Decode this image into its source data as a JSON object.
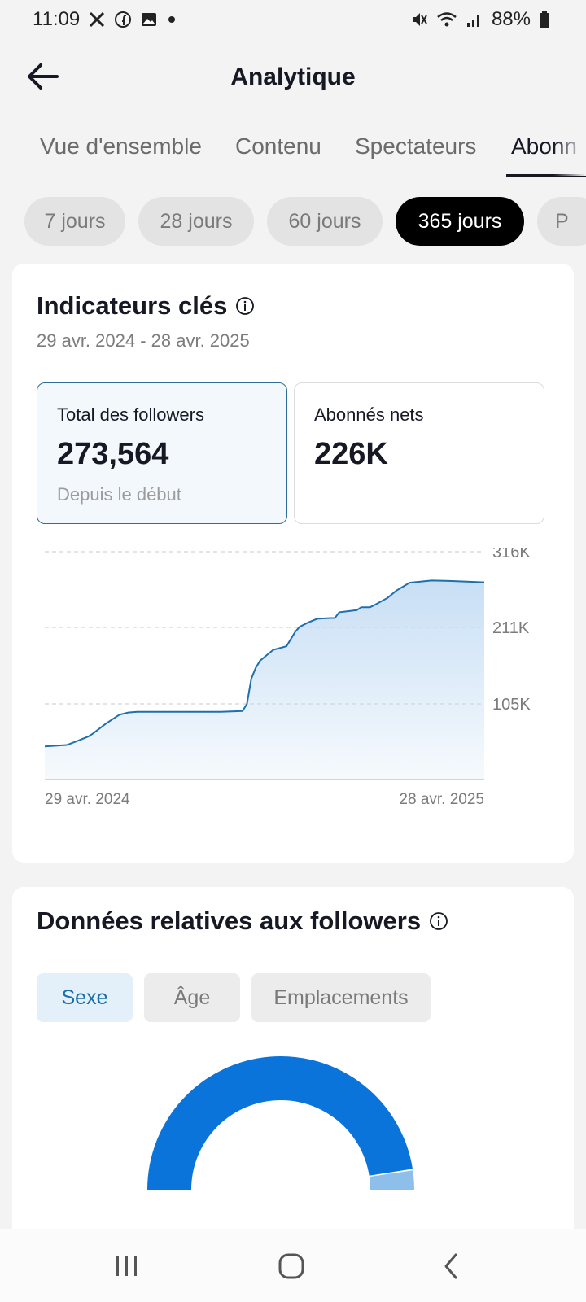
{
  "status_bar": {
    "time": "11:09",
    "battery": "88%",
    "icons": [
      "x-icon",
      "facebook-icon",
      "gallery-icon",
      "dot-icon",
      "mute-icon",
      "wifi-icon",
      "signal-icon",
      "battery-icon"
    ]
  },
  "header": {
    "title": "Analytique",
    "back_icon": "arrow-left-icon"
  },
  "tabs": [
    {
      "label": "Vue d'ensemble",
      "active": false
    },
    {
      "label": "Contenu",
      "active": false
    },
    {
      "label": "Spectateurs",
      "active": false
    },
    {
      "label": "Abonn",
      "active": true
    }
  ],
  "periods": [
    {
      "label": "7 jours",
      "active": false
    },
    {
      "label": "28 jours",
      "active": false
    },
    {
      "label": "60 jours",
      "active": false
    },
    {
      "label": "365 jours",
      "active": true
    },
    {
      "label": "P",
      "active": false
    }
  ],
  "key_metrics": {
    "title": "Indicateurs clés",
    "date_range": "29 avr. 2024 - 28 avr. 2025",
    "cards": [
      {
        "label": "Total des followers",
        "value": "273,564",
        "sub": "Depuis le début",
        "selected": true
      },
      {
        "label": "Abonnés nets",
        "value": "226K",
        "sub": "",
        "selected": false
      }
    ]
  },
  "chart_data": {
    "type": "area",
    "title": "",
    "xlabel": "",
    "ylabel": "",
    "x_tick_labels": [
      "29 avr. 2024",
      "28 avr. 2025"
    ],
    "y_tick_labels": [
      "316K",
      "211K",
      "105K"
    ],
    "y_ticks": [
      316000,
      211000,
      105000
    ],
    "ylim": [
      0,
      316000
    ],
    "grid": true,
    "color": "#1f6fae",
    "fill_color": "#c5ddf4",
    "series": [
      {
        "x": [
          0,
          0.05,
          0.08,
          0.1,
          0.11,
          0.14,
          0.16,
          0.17,
          0.19,
          0.21,
          0.23,
          0.3,
          0.4,
          0.45,
          0.46,
          0.47,
          0.48,
          0.49,
          0.5,
          0.51,
          0.52,
          0.55,
          0.56,
          0.57,
          0.58,
          0.6,
          0.62,
          0.65,
          0.66,
          0.67,
          0.71,
          0.72,
          0.74,
          0.75,
          0.78,
          0.8,
          0.83,
          0.88,
          0.92,
          0.96,
          1.0
        ],
        "values": [
          46000,
          48000,
          55000,
          60000,
          64000,
          78000,
          86000,
          90000,
          93000,
          94000,
          94000,
          94000,
          94000,
          95000,
          105000,
          140000,
          155000,
          165000,
          170000,
          175000,
          180000,
          185000,
          195000,
          205000,
          212000,
          218000,
          223000,
          224000,
          224000,
          232000,
          235000,
          239000,
          239000,
          242000,
          252000,
          262000,
          273000,
          276000,
          275500,
          274500,
          273564
        ]
      }
    ]
  },
  "followers_data": {
    "title": "Données relatives aux followers",
    "segments": [
      {
        "label": "Sexe",
        "active": true
      },
      {
        "label": "Âge",
        "active": false
      },
      {
        "label": "Emplacements",
        "active": false
      }
    ],
    "gender_donut": {
      "type": "pie",
      "slices": [
        {
          "fraction": 0.95,
          "color": "#0a74da"
        },
        {
          "fraction": 0.05,
          "color": "#8ebfeb"
        }
      ]
    }
  },
  "nav_bar": {
    "icons": [
      "recent-apps-icon",
      "home-icon",
      "back-icon"
    ]
  }
}
